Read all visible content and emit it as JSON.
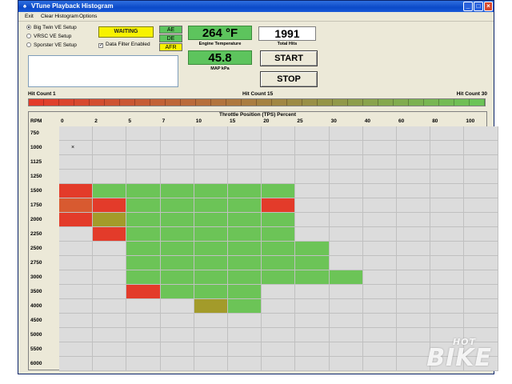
{
  "window": {
    "title": "VTune Playback Histogram"
  },
  "menu": [
    "Exit",
    "Clear Histogram",
    "Options"
  ],
  "setups": [
    {
      "label": "Big Twin VE Setup",
      "selected": true
    },
    {
      "label": "VRSC VE Setup",
      "selected": false
    },
    {
      "label": "Sporster VE Setup",
      "selected": false
    }
  ],
  "status": {
    "waiting": "WAITING",
    "data_filter_label": "Data Filter Enabled",
    "data_filter_checked": true,
    "flags": [
      {
        "label": "AE",
        "color": "#5dc45d"
      },
      {
        "label": "DE",
        "color": "#5dc45d"
      },
      {
        "label": "AFR",
        "color": "#f7f200"
      }
    ]
  },
  "engine": {
    "temperature": "264 °F",
    "temperature_label": "Engine Temperature",
    "map": "45.8",
    "map_label": "MAP kPa"
  },
  "hits": {
    "total": "1991",
    "label": "Total Hits"
  },
  "buttons": {
    "start": "START",
    "stop": "STOP"
  },
  "hit_scale": {
    "low_label": "Hit Count 1",
    "mid_label": "Hit Count 15",
    "high_label": "Hit Count 30",
    "colors": [
      "#e33b2a",
      "#6cc457"
    ]
  },
  "histogram": {
    "tps_title": "Throttle Position (TPS) Percent",
    "rpm_header": "RPM",
    "tps": [
      "0",
      "2",
      "5",
      "7",
      "10",
      "15",
      "20",
      "25",
      "30",
      "40",
      "60",
      "80",
      "100"
    ],
    "rpm": [
      "750",
      "1000",
      "1125",
      "1250",
      "1500",
      "1750",
      "2000",
      "2250",
      "2500",
      "2750",
      "3000",
      "3500",
      "4000",
      "4500",
      "5000",
      "5500",
      "6000"
    ],
    "cells": [
      {
        "rpm": "1000",
        "tps": "0",
        "mark": "×"
      },
      {
        "rpm": "1500",
        "tps": "0",
        "level": "low"
      },
      {
        "rpm": "1500",
        "tps": "2",
        "level": "mid"
      },
      {
        "rpm": "1500",
        "tps": "5",
        "level": "mid"
      },
      {
        "rpm": "1500",
        "tps": "7",
        "level": "mid"
      },
      {
        "rpm": "1500",
        "tps": "10",
        "level": "mid"
      },
      {
        "rpm": "1500",
        "tps": "15",
        "level": "mid"
      },
      {
        "rpm": "1500",
        "tps": "20",
        "level": "mid"
      },
      {
        "rpm": "1750",
        "tps": "0",
        "level": "amber"
      },
      {
        "rpm": "1750",
        "tps": "2",
        "level": "low"
      },
      {
        "rpm": "1750",
        "tps": "5",
        "level": "mid"
      },
      {
        "rpm": "1750",
        "tps": "7",
        "level": "mid"
      },
      {
        "rpm": "1750",
        "tps": "10",
        "level": "mid"
      },
      {
        "rpm": "1750",
        "tps": "15",
        "level": "mid"
      },
      {
        "rpm": "1750",
        "tps": "20",
        "level": "low"
      },
      {
        "rpm": "2000",
        "tps": "0",
        "level": "low"
      },
      {
        "rpm": "2000",
        "tps": "2",
        "level": "olive"
      },
      {
        "rpm": "2000",
        "tps": "5",
        "level": "mid"
      },
      {
        "rpm": "2000",
        "tps": "7",
        "level": "mid"
      },
      {
        "rpm": "2000",
        "tps": "10",
        "level": "mid"
      },
      {
        "rpm": "2000",
        "tps": "15",
        "level": "mid"
      },
      {
        "rpm": "2000",
        "tps": "20",
        "level": "mid"
      },
      {
        "rpm": "2250",
        "tps": "2",
        "level": "low"
      },
      {
        "rpm": "2250",
        "tps": "5",
        "level": "mid"
      },
      {
        "rpm": "2250",
        "tps": "7",
        "level": "mid"
      },
      {
        "rpm": "2250",
        "tps": "10",
        "level": "mid"
      },
      {
        "rpm": "2250",
        "tps": "15",
        "level": "mid"
      },
      {
        "rpm": "2250",
        "tps": "20",
        "level": "mid"
      },
      {
        "rpm": "2500",
        "tps": "5",
        "level": "mid"
      },
      {
        "rpm": "2500",
        "tps": "7",
        "level": "mid"
      },
      {
        "rpm": "2500",
        "tps": "10",
        "level": "mid"
      },
      {
        "rpm": "2500",
        "tps": "15",
        "level": "mid"
      },
      {
        "rpm": "2500",
        "tps": "20",
        "level": "mid"
      },
      {
        "rpm": "2500",
        "tps": "25",
        "level": "mid"
      },
      {
        "rpm": "2750",
        "tps": "5",
        "level": "mid"
      },
      {
        "rpm": "2750",
        "tps": "7",
        "level": "mid"
      },
      {
        "rpm": "2750",
        "tps": "10",
        "level": "mid"
      },
      {
        "rpm": "2750",
        "tps": "15",
        "level": "mid"
      },
      {
        "rpm": "2750",
        "tps": "20",
        "level": "mid"
      },
      {
        "rpm": "2750",
        "tps": "25",
        "level": "mid"
      },
      {
        "rpm": "3000",
        "tps": "5",
        "level": "mid"
      },
      {
        "rpm": "3000",
        "tps": "7",
        "level": "mid"
      },
      {
        "rpm": "3000",
        "tps": "10",
        "level": "mid"
      },
      {
        "rpm": "3000",
        "tps": "15",
        "level": "mid"
      },
      {
        "rpm": "3000",
        "tps": "20",
        "level": "mid"
      },
      {
        "rpm": "3000",
        "tps": "25",
        "level": "mid"
      },
      {
        "rpm": "3000",
        "tps": "30",
        "level": "mid"
      },
      {
        "rpm": "3500",
        "tps": "5",
        "level": "low"
      },
      {
        "rpm": "3500",
        "tps": "7",
        "level": "mid"
      },
      {
        "rpm": "3500",
        "tps": "10",
        "level": "mid"
      },
      {
        "rpm": "3500",
        "tps": "15",
        "level": "mid"
      },
      {
        "rpm": "4000",
        "tps": "10",
        "level": "olive"
      },
      {
        "rpm": "4000",
        "tps": "15",
        "level": "mid"
      }
    ]
  },
  "watermark": {
    "top": "HOT",
    "bottom": "BIKE"
  }
}
